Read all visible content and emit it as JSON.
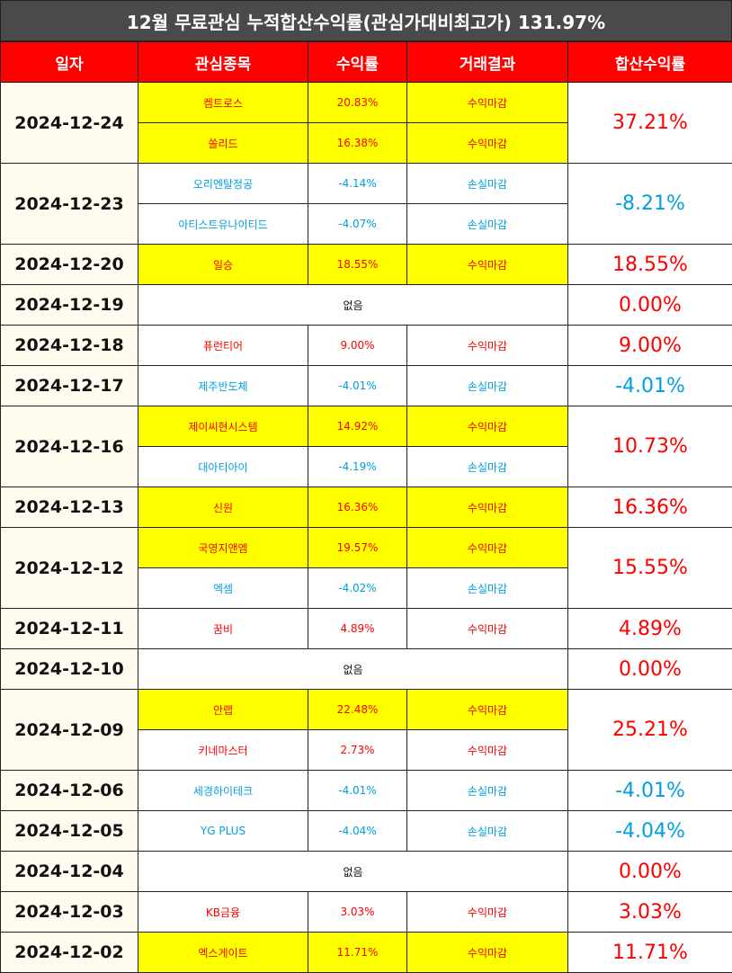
{
  "title": "12월 무료관심 누적합산수익률(관심가대비최고가) 131.97%",
  "headers": [
    "일자",
    "관심종목",
    "수익률",
    "거래결과",
    "합산수익률"
  ],
  "days": [
    {
      "date": "2024-12-24",
      "total": "37.21%",
      "sign": "pos",
      "items": [
        {
          "name": "켐트로스",
          "ret": "20.83%",
          "result": "수익마감",
          "sign": "pos",
          "hl": true
        },
        {
          "name": "쏠리드",
          "ret": "16.38%",
          "result": "수익마감",
          "sign": "pos",
          "hl": true
        }
      ]
    },
    {
      "date": "2024-12-23",
      "total": "-8.21%",
      "sign": "neg",
      "items": [
        {
          "name": "오리엔탈정공",
          "ret": "-4.14%",
          "result": "손실마감",
          "sign": "neg",
          "hl": false
        },
        {
          "name": "아티스트유나이티드",
          "ret": "-4.07%",
          "result": "손실마감",
          "sign": "neg",
          "hl": false
        }
      ]
    },
    {
      "date": "2024-12-20",
      "total": "18.55%",
      "sign": "pos",
      "items": [
        {
          "name": "일승",
          "ret": "18.55%",
          "result": "수익마감",
          "sign": "pos",
          "hl": true
        }
      ]
    },
    {
      "date": "2024-12-19",
      "total": "0.00%",
      "sign": "pos",
      "none": "없음",
      "items": []
    },
    {
      "date": "2024-12-18",
      "total": "9.00%",
      "sign": "pos",
      "items": [
        {
          "name": "퓨런티어",
          "ret": "9.00%",
          "result": "수익마감",
          "sign": "pos",
          "hl": false
        }
      ]
    },
    {
      "date": "2024-12-17",
      "total": "-4.01%",
      "sign": "neg",
      "items": [
        {
          "name": "제주반도체",
          "ret": "-4.01%",
          "result": "손실마감",
          "sign": "neg",
          "hl": false
        }
      ]
    },
    {
      "date": "2024-12-16",
      "total": "10.73%",
      "sign": "pos",
      "items": [
        {
          "name": "제이씨현시스템",
          "ret": "14.92%",
          "result": "수익마감",
          "sign": "pos",
          "hl": true
        },
        {
          "name": "대아티아이",
          "ret": "-4.19%",
          "result": "손실마감",
          "sign": "neg",
          "hl": false
        }
      ]
    },
    {
      "date": "2024-12-13",
      "total": "16.36%",
      "sign": "pos",
      "items": [
        {
          "name": "신원",
          "ret": "16.36%",
          "result": "수익마감",
          "sign": "pos",
          "hl": true
        }
      ]
    },
    {
      "date": "2024-12-12",
      "total": "15.55%",
      "sign": "pos",
      "items": [
        {
          "name": "국영지앤엠",
          "ret": "19.57%",
          "result": "수익마감",
          "sign": "pos",
          "hl": true
        },
        {
          "name": "엑셈",
          "ret": "-4.02%",
          "result": "손실마감",
          "sign": "neg",
          "hl": false
        }
      ]
    },
    {
      "date": "2024-12-11",
      "total": "4.89%",
      "sign": "pos",
      "items": [
        {
          "name": "꿈비",
          "ret": "4.89%",
          "result": "수익마감",
          "sign": "pos",
          "hl": false
        }
      ]
    },
    {
      "date": "2024-12-10",
      "total": "0.00%",
      "sign": "pos",
      "none": "없음",
      "items": []
    },
    {
      "date": "2024-12-09",
      "total": "25.21%",
      "sign": "pos",
      "items": [
        {
          "name": "안랩",
          "ret": "22.48%",
          "result": "수익마감",
          "sign": "pos",
          "hl": true
        },
        {
          "name": "키네마스터",
          "ret": "2.73%",
          "result": "수익마감",
          "sign": "pos",
          "hl": false
        }
      ]
    },
    {
      "date": "2024-12-06",
      "total": "-4.01%",
      "sign": "neg",
      "items": [
        {
          "name": "세경하이테크",
          "ret": "-4.01%",
          "result": "손실마감",
          "sign": "neg",
          "hl": false
        }
      ]
    },
    {
      "date": "2024-12-05",
      "total": "-4.04%",
      "sign": "neg",
      "items": [
        {
          "name": "YG PLUS",
          "ret": "-4.04%",
          "result": "손실마감",
          "sign": "neg",
          "hl": false
        }
      ]
    },
    {
      "date": "2024-12-04",
      "total": "0.00%",
      "sign": "pos",
      "none": "없음",
      "items": []
    },
    {
      "date": "2024-12-03",
      "total": "3.03%",
      "sign": "pos",
      "items": [
        {
          "name": "KB금융",
          "ret": "3.03%",
          "result": "수익마감",
          "sign": "pos",
          "hl": false
        }
      ]
    },
    {
      "date": "2024-12-02",
      "total": "11.71%",
      "sign": "pos",
      "items": [
        {
          "name": "엑스게이트",
          "ret": "11.71%",
          "result": "수익마감",
          "sign": "pos",
          "hl": true
        }
      ]
    }
  ]
}
